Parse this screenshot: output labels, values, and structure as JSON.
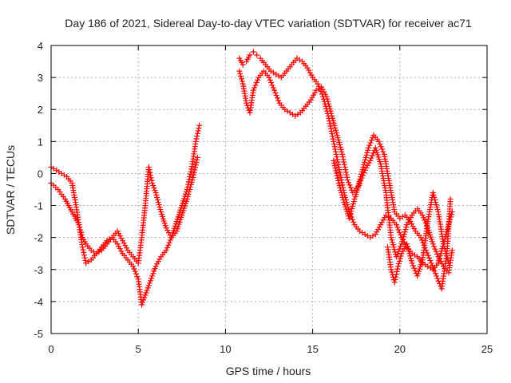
{
  "chart_data": {
    "type": "scatter",
    "title": "Day 186 of 2021, Sidereal Day-to-day VTEC variation (SDTVAR) for receiver ac71",
    "xlabel": "GPS time / hours",
    "ylabel": "SDTVAR / TECUs",
    "xlim": [
      0,
      25
    ],
    "ylim": [
      -5,
      4
    ],
    "xticks": [
      0,
      5,
      10,
      15,
      20,
      25
    ],
    "yticks": [
      -5,
      -4,
      -3,
      -2,
      -1,
      0,
      1,
      2,
      3,
      4
    ],
    "grid": true,
    "marker": "+",
    "color": "#ff0000",
    "series": [
      {
        "name": "trace-a",
        "x": [
          0.0,
          0.3,
          0.6,
          0.9,
          1.2,
          1.4,
          1.6,
          1.8,
          2.0,
          2.3,
          2.6,
          2.9,
          3.2,
          3.5,
          3.8,
          4.1,
          4.4,
          4.7,
          5.0,
          5.2,
          5.4,
          5.6,
          5.8,
          6.0,
          6.3,
          6.6,
          6.9,
          7.2,
          7.5,
          7.8,
          8.1,
          8.3,
          8.5
        ],
        "y": [
          0.2,
          0.1,
          0.0,
          -0.1,
          -0.3,
          -0.9,
          -1.6,
          -2.3,
          -2.8,
          -2.7,
          -2.5,
          -2.3,
          -2.1,
          -2.0,
          -2.2,
          -2.5,
          -2.7,
          -2.9,
          -3.3,
          -4.1,
          -3.8,
          -3.5,
          -3.2,
          -2.9,
          -2.6,
          -2.4,
          -2.0,
          -1.5,
          -1.0,
          -0.5,
          0.3,
          1.0,
          1.5
        ]
      },
      {
        "name": "trace-b",
        "x": [
          0.0,
          0.4,
          0.8,
          1.2,
          1.6,
          1.8,
          2.0,
          2.3,
          2.6,
          2.9,
          3.2,
          3.5,
          3.8,
          4.1,
          4.4,
          4.7,
          5.0,
          5.2,
          5.4,
          5.6,
          5.8,
          6.0,
          6.3,
          6.6,
          6.9,
          7.2,
          7.5,
          7.8,
          8.1,
          8.4
        ],
        "y": [
          -0.3,
          -0.5,
          -0.8,
          -1.2,
          -1.6,
          -2.0,
          -2.2,
          -2.4,
          -2.5,
          -2.4,
          -2.2,
          -2.0,
          -1.8,
          -2.1,
          -2.4,
          -2.6,
          -2.8,
          -2.0,
          -1.0,
          0.2,
          -0.3,
          -0.6,
          -1.2,
          -1.7,
          -2.0,
          -1.8,
          -1.3,
          -0.8,
          -0.2,
          0.5
        ]
      },
      {
        "name": "trace-c",
        "x": [
          10.8,
          11.0,
          11.2,
          11.4,
          11.6,
          11.8,
          12.0,
          12.3,
          12.6,
          12.9,
          13.2,
          13.5,
          13.8,
          14.1,
          14.4,
          14.7,
          15.0,
          15.3,
          15.6,
          15.9,
          16.2,
          16.5,
          16.8,
          17.1,
          17.4,
          17.7,
          18.0,
          18.3,
          18.6,
          18.9,
          19.2,
          19.5,
          19.8,
          20.1,
          20.4,
          20.7,
          21.0,
          21.3,
          21.6,
          21.9,
          22.2,
          22.5,
          22.8,
          23.0
        ],
        "y": [
          3.6,
          3.4,
          3.5,
          3.7,
          3.8,
          3.7,
          3.6,
          3.4,
          3.2,
          3.1,
          3.0,
          3.2,
          3.4,
          3.6,
          3.5,
          3.3,
          3.0,
          2.8,
          2.4,
          1.8,
          1.0,
          0.2,
          -0.6,
          -1.2,
          -1.6,
          -1.8,
          -1.9,
          -2.0,
          -1.9,
          -1.6,
          -1.3,
          -1.4,
          -1.6,
          -2.0,
          -2.3,
          -2.5,
          -2.6,
          -2.8,
          -2.9,
          -3.0,
          -2.8,
          -2.2,
          -1.6,
          -1.2
        ]
      },
      {
        "name": "trace-d",
        "x": [
          10.8,
          11.0,
          11.2,
          11.4,
          11.6,
          11.9,
          12.2,
          12.5,
          12.8,
          13.1,
          13.4,
          13.7,
          14.0,
          14.3,
          14.6,
          14.9,
          15.2,
          15.5,
          15.8,
          16.1,
          16.4,
          16.7,
          17.0,
          17.3,
          17.6,
          17.9,
          18.2,
          18.5,
          18.8,
          19.1,
          19.4,
          19.7,
          20.0,
          20.3,
          20.6,
          20.9,
          21.2,
          21.5,
          21.8,
          22.1,
          22.4,
          22.7,
          22.9
        ],
        "y": [
          3.2,
          2.8,
          2.2,
          1.9,
          2.6,
          3.0,
          3.2,
          3.0,
          2.6,
          2.2,
          2.0,
          1.9,
          1.8,
          1.9,
          2.1,
          2.3,
          2.6,
          2.7,
          2.4,
          1.8,
          1.2,
          0.6,
          -0.2,
          -0.6,
          -0.4,
          0.2,
          0.8,
          1.2,
          1.0,
          0.6,
          -0.3,
          -1.2,
          -1.4,
          -1.3,
          -1.5,
          -1.8,
          -2.0,
          -2.4,
          -2.8,
          -3.2,
          -3.6,
          -2.5,
          -0.8
        ]
      },
      {
        "name": "trace-e",
        "x": [
          16.2,
          16.5,
          16.8,
          17.1,
          17.4,
          17.7,
          18.0,
          18.3,
          18.6,
          18.9,
          19.2,
          19.5,
          19.8,
          20.1,
          20.4,
          20.7,
          21.0,
          21.3,
          21.6,
          21.9,
          22.2,
          22.5,
          22.8,
          23.0
        ],
        "y": [
          0.4,
          -0.3,
          -0.9,
          -1.4,
          -0.8,
          -0.3,
          0.1,
          0.4,
          0.8,
          0.3,
          -0.6,
          -2.0,
          -2.6,
          -2.2,
          -1.6,
          -1.3,
          -1.1,
          -1.3,
          -1.7,
          -2.2,
          -2.6,
          -2.9,
          -3.1,
          -2.4
        ]
      },
      {
        "name": "trace-f",
        "x": [
          19.3,
          19.5,
          19.7,
          19.9,
          20.1,
          20.4,
          20.7,
          21.0,
          21.3,
          21.6,
          21.9,
          22.2,
          22.5,
          22.8
        ],
        "y": [
          -2.3,
          -3.0,
          -3.4,
          -2.9,
          -2.5,
          -2.2,
          -2.8,
          -3.2,
          -2.7,
          -1.5,
          -0.6,
          -1.2,
          -2.2,
          -2.8
        ]
      }
    ]
  }
}
